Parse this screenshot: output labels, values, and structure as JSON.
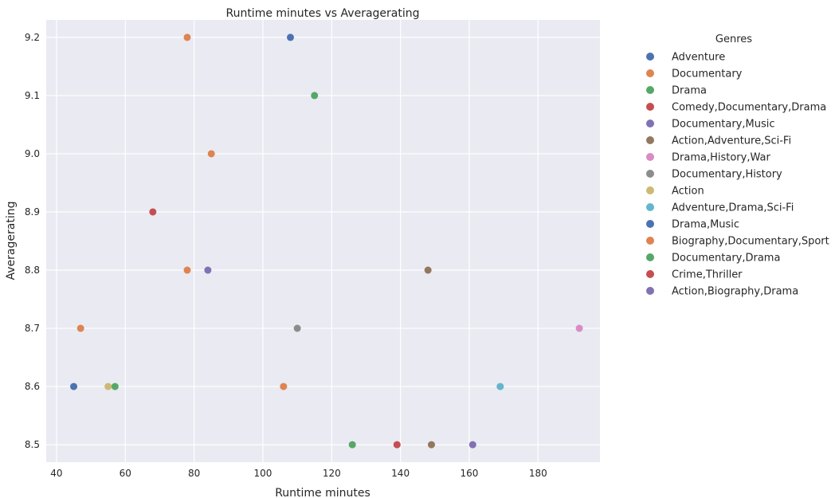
{
  "chart_data": {
    "type": "scatter",
    "title": "Runtime minutes vs Averagerating",
    "xlabel": "Runtime minutes",
    "ylabel": "Averagerating",
    "xlim": [
      37,
      198
    ],
    "ylim": [
      8.47,
      9.23
    ],
    "xticks": [
      40,
      60,
      80,
      100,
      120,
      140,
      160,
      180
    ],
    "yticks": [
      8.5,
      8.6,
      8.7,
      8.8,
      8.9,
      9.0,
      9.1,
      9.2
    ],
    "grid": true,
    "legend": {
      "title": "Genres",
      "placement": "outside-right"
    },
    "series": [
      {
        "name": "Adventure",
        "color": "#4c72b0",
        "points": [
          [
            45,
            8.6
          ]
        ]
      },
      {
        "name": "Documentary",
        "color": "#dd8452",
        "points": [
          [
            78,
            9.2
          ],
          [
            85,
            9.0
          ],
          [
            78,
            8.8
          ],
          [
            47,
            8.7
          ],
          [
            106,
            8.6
          ]
        ]
      },
      {
        "name": "Drama",
        "color": "#55a868",
        "points": [
          [
            115,
            9.1
          ],
          [
            57,
            8.6
          ],
          [
            126,
            8.5
          ]
        ]
      },
      {
        "name": "Comedy,Documentary,Drama",
        "color": "#c44e52",
        "points": [
          [
            68,
            8.9
          ]
        ]
      },
      {
        "name": "Documentary,Music",
        "color": "#8172b3",
        "points": [
          [
            84,
            8.8
          ]
        ]
      },
      {
        "name": "Action,Adventure,Sci-Fi",
        "color": "#937860",
        "points": [
          [
            148,
            8.8
          ],
          [
            149,
            8.5
          ]
        ]
      },
      {
        "name": "Drama,History,War",
        "color": "#da8bc3",
        "points": [
          [
            192,
            8.7
          ]
        ]
      },
      {
        "name": "Documentary,History",
        "color": "#8c8c8c",
        "points": [
          [
            110,
            8.7
          ]
        ]
      },
      {
        "name": "Action",
        "color": "#ccb974",
        "points": [
          [
            55,
            8.6
          ]
        ]
      },
      {
        "name": "Adventure,Drama,Sci-Fi",
        "color": "#64b5cd",
        "points": [
          [
            169,
            8.6
          ]
        ]
      },
      {
        "name": "Drama,Music",
        "color": "#4c72b0",
        "points": [
          [
            108,
            9.2
          ]
        ]
      },
      {
        "name": "Biography,Documentary,Sport",
        "color": "#dd8452",
        "points": []
      },
      {
        "name": "Documentary,Drama",
        "color": "#55a868",
        "points": []
      },
      {
        "name": "Crime,Thriller",
        "color": "#c44e52",
        "points": [
          [
            139,
            8.5
          ]
        ]
      },
      {
        "name": "Action,Biography,Drama",
        "color": "#8172b3",
        "points": [
          [
            161,
            8.5
          ]
        ]
      }
    ]
  }
}
